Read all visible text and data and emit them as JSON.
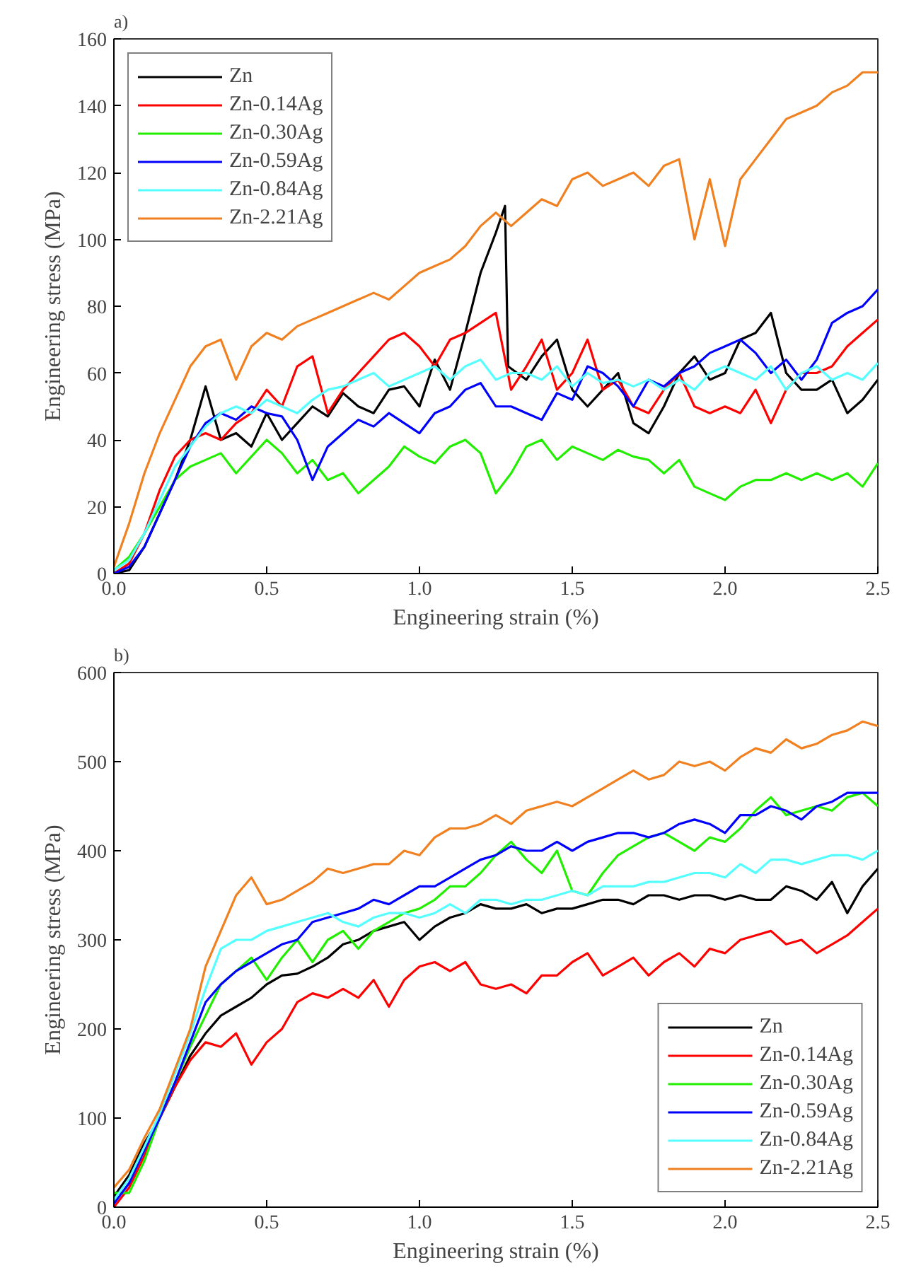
{
  "chart_data": [
    {
      "type": "line",
      "title": "a)",
      "xlabel": "Engineering strain (%)",
      "ylabel": "Engineering stress (MPa)",
      "xlim": [
        0,
        2.5
      ],
      "ylim": [
        0,
        160
      ],
      "xticks": [
        {
          "value": 0,
          "label": "0.0"
        },
        0.5,
        {
          "value": 1,
          "label": "1.0"
        },
        1.5,
        {
          "value": 2,
          "label": "2.0"
        },
        2.5
      ],
      "yticks": [
        0,
        20,
        40,
        60,
        80,
        100,
        120,
        140,
        160
      ],
      "grid": false,
      "legend": "top left",
      "line_style": "solid",
      "marker": "none",
      "x": [
        0,
        0.05,
        0.1,
        0.15,
        0.2,
        0.25,
        0.3,
        0.35,
        0.4,
        0.45,
        0.5,
        0.55,
        0.6,
        0.65,
        0.7,
        0.75,
        0.8,
        0.85,
        0.9,
        0.95,
        1.0,
        1.05,
        1.1,
        1.15,
        1.2,
        1.25,
        1.3,
        1.35,
        1.4,
        1.45,
        1.5,
        1.55,
        1.6,
        1.65,
        1.7,
        1.75,
        1.8,
        1.85,
        1.9,
        1.95,
        2.0,
        2.05,
        2.1,
        2.15,
        2.2,
        2.25,
        2.3,
        2.35,
        2.4,
        2.45,
        2.5
      ],
      "series": [
        {
          "name": "Zn",
          "color": "#000000",
          "x": [
            0,
            0.05,
            0.1,
            0.15,
            0.2,
            0.25,
            0.3,
            0.35,
            0.4,
            0.45,
            0.5,
            0.55,
            0.6,
            0.65,
            0.7,
            0.75,
            0.8,
            0.85,
            0.9,
            0.95,
            1.0,
            1.05,
            1.1,
            1.15,
            1.2,
            1.25,
            1.28,
            1.29,
            1.35,
            1.4,
            1.45,
            1.5,
            1.55,
            1.6,
            1.65,
            1.7,
            1.75,
            1.8,
            1.85,
            1.9,
            1.95,
            2.0,
            2.05,
            2.1,
            2.15,
            2.2,
            2.25,
            2.3,
            2.35,
            2.4,
            2.45,
            2.5
          ],
          "values": [
            0,
            1,
            8,
            18,
            28,
            40,
            56,
            40,
            42,
            38,
            48,
            40,
            45,
            50,
            47,
            54,
            50,
            48,
            55,
            56,
            50,
            64,
            55,
            72,
            90,
            102,
            110,
            62,
            58,
            65,
            70,
            55,
            50,
            55,
            60,
            45,
            42,
            50,
            60,
            65,
            58,
            60,
            70,
            72,
            78,
            60,
            55,
            55,
            58,
            48,
            52,
            58
          ]
        },
        {
          "name": "Zn-0.14Ag",
          "color": "#ff0000",
          "values": [
            0,
            3,
            12,
            25,
            35,
            40,
            42,
            40,
            45,
            48,
            55,
            50,
            62,
            65,
            48,
            55,
            60,
            65,
            70,
            72,
            68,
            62,
            70,
            72,
            75,
            78,
            55,
            62,
            70,
            55,
            60,
            70,
            55,
            58,
            50,
            48,
            55,
            60,
            50,
            48,
            50,
            48,
            55,
            45,
            55,
            60,
            60,
            62,
            68,
            72,
            76
          ]
        },
        {
          "name": "Zn-0.30Ag",
          "color": "#22ee00",
          "values": [
            1,
            5,
            12,
            20,
            28,
            32,
            34,
            36,
            30,
            35,
            40,
            36,
            30,
            34,
            28,
            30,
            24,
            28,
            32,
            38,
            35,
            33,
            38,
            40,
            36,
            24,
            30,
            38,
            40,
            34,
            38,
            36,
            34,
            37,
            35,
            34,
            30,
            34,
            26,
            24,
            22,
            26,
            28,
            28,
            30,
            28,
            30,
            28,
            30,
            26,
            33
          ]
        },
        {
          "name": "Zn-0.59Ag",
          "color": "#0000ff",
          "values": [
            0,
            2,
            8,
            18,
            28,
            38,
            45,
            48,
            46,
            50,
            48,
            47,
            40,
            28,
            38,
            42,
            46,
            44,
            48,
            45,
            42,
            48,
            50,
            55,
            57,
            50,
            50,
            48,
            46,
            54,
            52,
            62,
            60,
            56,
            50,
            58,
            56,
            60,
            62,
            66,
            68,
            70,
            66,
            60,
            64,
            58,
            64,
            75,
            78,
            80,
            85
          ]
        },
        {
          "name": "Zn-0.84Ag",
          "color": "#55ffff",
          "values": [
            1,
            4,
            12,
            22,
            32,
            38,
            44,
            48,
            50,
            48,
            52,
            50,
            48,
            52,
            55,
            56,
            58,
            60,
            56,
            58,
            60,
            62,
            58,
            62,
            64,
            58,
            60,
            60,
            58,
            62,
            56,
            60,
            57,
            58,
            56,
            58,
            55,
            58,
            55,
            60,
            62,
            60,
            58,
            62,
            55,
            60,
            62,
            58,
            60,
            58,
            63
          ]
        },
        {
          "name": "Zn-2.21Ag",
          "color": "#f08020",
          "values": [
            2,
            15,
            30,
            42,
            52,
            62,
            68,
            70,
            58,
            68,
            72,
            70,
            74,
            76,
            78,
            80,
            82,
            84,
            82,
            86,
            90,
            92,
            94,
            98,
            104,
            108,
            104,
            108,
            112,
            110,
            118,
            120,
            116,
            118,
            120,
            116,
            122,
            124,
            100,
            118,
            98,
            118,
            124,
            130,
            136,
            138,
            140,
            144,
            146,
            150,
            150
          ]
        }
      ]
    },
    {
      "type": "line",
      "title": "b)",
      "xlabel": "Engineering strain (%)",
      "ylabel": "Engineering stress (MPa)",
      "xlim": [
        0,
        2.5
      ],
      "ylim": [
        0,
        600
      ],
      "xticks": [
        {
          "value": 0,
          "label": "0.0"
        },
        0.5,
        {
          "value": 1,
          "label": "1.0"
        },
        1.5,
        {
          "value": 2,
          "label": "2.0"
        },
        2.5
      ],
      "yticks": [
        0,
        100,
        200,
        300,
        400,
        500,
        600
      ],
      "grid": false,
      "legend": "bottom right",
      "line_style": "solid",
      "marker": "none",
      "x": [
        0,
        0.05,
        0.1,
        0.15,
        0.2,
        0.25,
        0.3,
        0.35,
        0.4,
        0.45,
        0.5,
        0.55,
        0.6,
        0.65,
        0.7,
        0.75,
        0.8,
        0.85,
        0.9,
        0.95,
        1.0,
        1.05,
        1.1,
        1.15,
        1.2,
        1.25,
        1.3,
        1.35,
        1.4,
        1.45,
        1.5,
        1.55,
        1.6,
        1.65,
        1.7,
        1.75,
        1.8,
        1.85,
        1.9,
        1.95,
        2.0,
        2.05,
        2.1,
        2.15,
        2.2,
        2.25,
        2.3,
        2.35,
        2.4,
        2.45,
        2.5
      ],
      "series": [
        {
          "name": "Zn",
          "color": "#000000",
          "values": [
            12,
            36,
            72,
            100,
            135,
            170,
            195,
            215,
            225,
            235,
            250,
            260,
            262,
            270,
            280,
            295,
            300,
            310,
            315,
            320,
            300,
            315,
            325,
            330,
            340,
            335,
            335,
            340,
            330,
            335,
            335,
            340,
            345,
            345,
            340,
            350,
            350,
            345,
            350,
            350,
            345,
            350,
            345,
            345,
            360,
            355,
            345,
            365,
            330,
            360,
            380
          ]
        },
        {
          "name": "Zn-0.14Ag",
          "color": "#ff0000",
          "values": [
            0,
            22,
            58,
            100,
            135,
            165,
            185,
            180,
            195,
            160,
            185,
            200,
            230,
            240,
            235,
            245,
            235,
            255,
            225,
            255,
            270,
            275,
            265,
            275,
            250,
            245,
            250,
            240,
            260,
            260,
            275,
            285,
            260,
            270,
            280,
            260,
            275,
            285,
            270,
            290,
            285,
            300,
            305,
            310,
            295,
            300,
            285,
            295,
            305,
            320,
            335
          ]
        },
        {
          "name": "Zn-0.30Ag",
          "color": "#22ee00",
          "values": [
            16,
            16,
            52,
            100,
            140,
            180,
            215,
            250,
            265,
            280,
            255,
            280,
            300,
            275,
            300,
            310,
            290,
            310,
            320,
            330,
            335,
            345,
            360,
            360,
            375,
            395,
            410,
            390,
            375,
            400,
            355,
            350,
            375,
            395,
            405,
            415,
            420,
            410,
            400,
            415,
            410,
            425,
            445,
            460,
            440,
            445,
            450,
            445,
            460,
            465,
            450
          ]
        },
        {
          "name": "Zn-0.59Ag",
          "color": "#0000ff",
          "values": [
            4,
            27,
            64,
            100,
            140,
            185,
            230,
            250,
            265,
            275,
            285,
            295,
            300,
            320,
            325,
            330,
            335,
            345,
            340,
            350,
            360,
            360,
            370,
            380,
            390,
            395,
            405,
            400,
            400,
            410,
            400,
            410,
            415,
            420,
            420,
            415,
            420,
            430,
            435,
            430,
            420,
            440,
            440,
            450,
            445,
            435,
            450,
            455,
            465,
            465,
            465
          ]
        },
        {
          "name": "Zn-0.84Ag",
          "color": "#55ffff",
          "values": [
            8,
            32,
            68,
            105,
            150,
            195,
            245,
            290,
            300,
            300,
            310,
            315,
            320,
            325,
            330,
            320,
            315,
            325,
            330,
            330,
            325,
            330,
            340,
            330,
            345,
            345,
            340,
            345,
            345,
            350,
            355,
            350,
            360,
            360,
            360,
            365,
            365,
            370,
            375,
            375,
            370,
            385,
            375,
            390,
            390,
            385,
            390,
            395,
            395,
            390,
            400
          ]
        },
        {
          "name": "Zn-2.21Ag",
          "color": "#f08020",
          "values": [
            22,
            42,
            78,
            110,
            155,
            200,
            270,
            310,
            350,
            370,
            340,
            345,
            355,
            365,
            380,
            375,
            380,
            385,
            385,
            400,
            395,
            415,
            425,
            425,
            430,
            440,
            430,
            445,
            450,
            455,
            450,
            460,
            470,
            480,
            490,
            480,
            485,
            500,
            495,
            500,
            490,
            505,
            515,
            510,
            525,
            515,
            520,
            530,
            535,
            545,
            540
          ]
        }
      ]
    }
  ]
}
